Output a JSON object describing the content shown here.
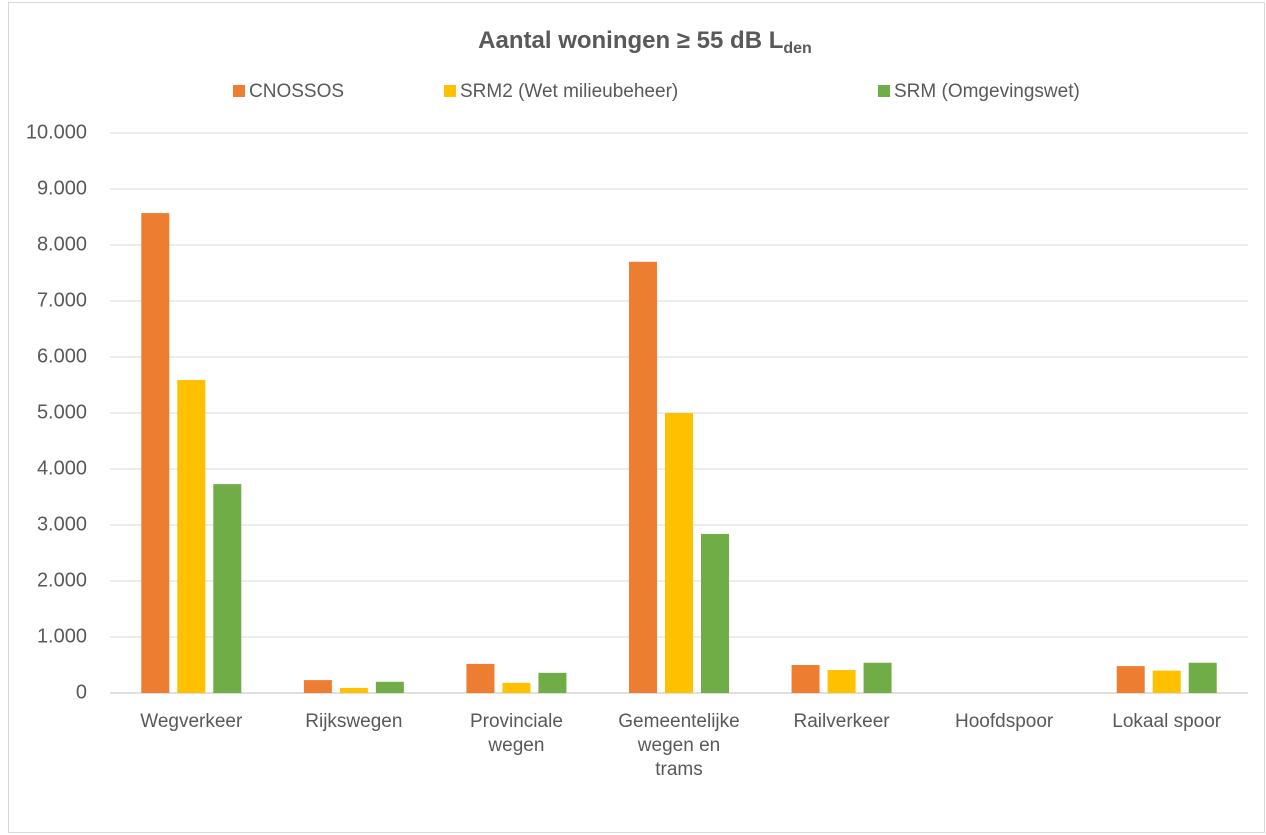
{
  "chart_data": {
    "type": "bar",
    "title": "Aantal woningen ≥ 55 dB L",
    "title_subscript": "den",
    "categories": [
      "Wegverkeer",
      "Rijkswegen",
      "Provinciale wegen",
      "Gemeentelijke wegen en trams",
      "Railverkeer",
      "Hoofdspoor",
      "Lokaal spoor"
    ],
    "series": [
      {
        "name": "CNOSSOS",
        "color": "#ed7d31",
        "values": [
          8570,
          230,
          520,
          7700,
          500,
          0,
          480
        ]
      },
      {
        "name": "SRM2 (Wet milieubeheer)",
        "color": "#ffc000",
        "values": [
          5590,
          90,
          180,
          5000,
          410,
          0,
          400
        ]
      },
      {
        "name": "SRM (Omgevingswet)",
        "color": "#70ad47",
        "values": [
          3730,
          200,
          360,
          2840,
          540,
          0,
          540
        ]
      }
    ],
    "ylim": [
      0,
      10000
    ],
    "yticks": [
      0,
      {
        "value": 1000,
        "label": "1.000"
      },
      {
        "value": 2000,
        "label": "2.000"
      },
      {
        "value": 3000,
        "label": "3.000"
      },
      {
        "value": 4000,
        "label": "4.000"
      },
      {
        "value": 5000,
        "label": "5.000"
      },
      {
        "value": 6000,
        "label": "6.000"
      },
      {
        "value": 7000,
        "label": "7.000"
      },
      {
        "value": 8000,
        "label": "8.000"
      },
      {
        "value": 9000,
        "label": "9.000"
      },
      {
        "value": 10000,
        "label": "10.000"
      }
    ],
    "grid": true,
    "legend": "top"
  }
}
